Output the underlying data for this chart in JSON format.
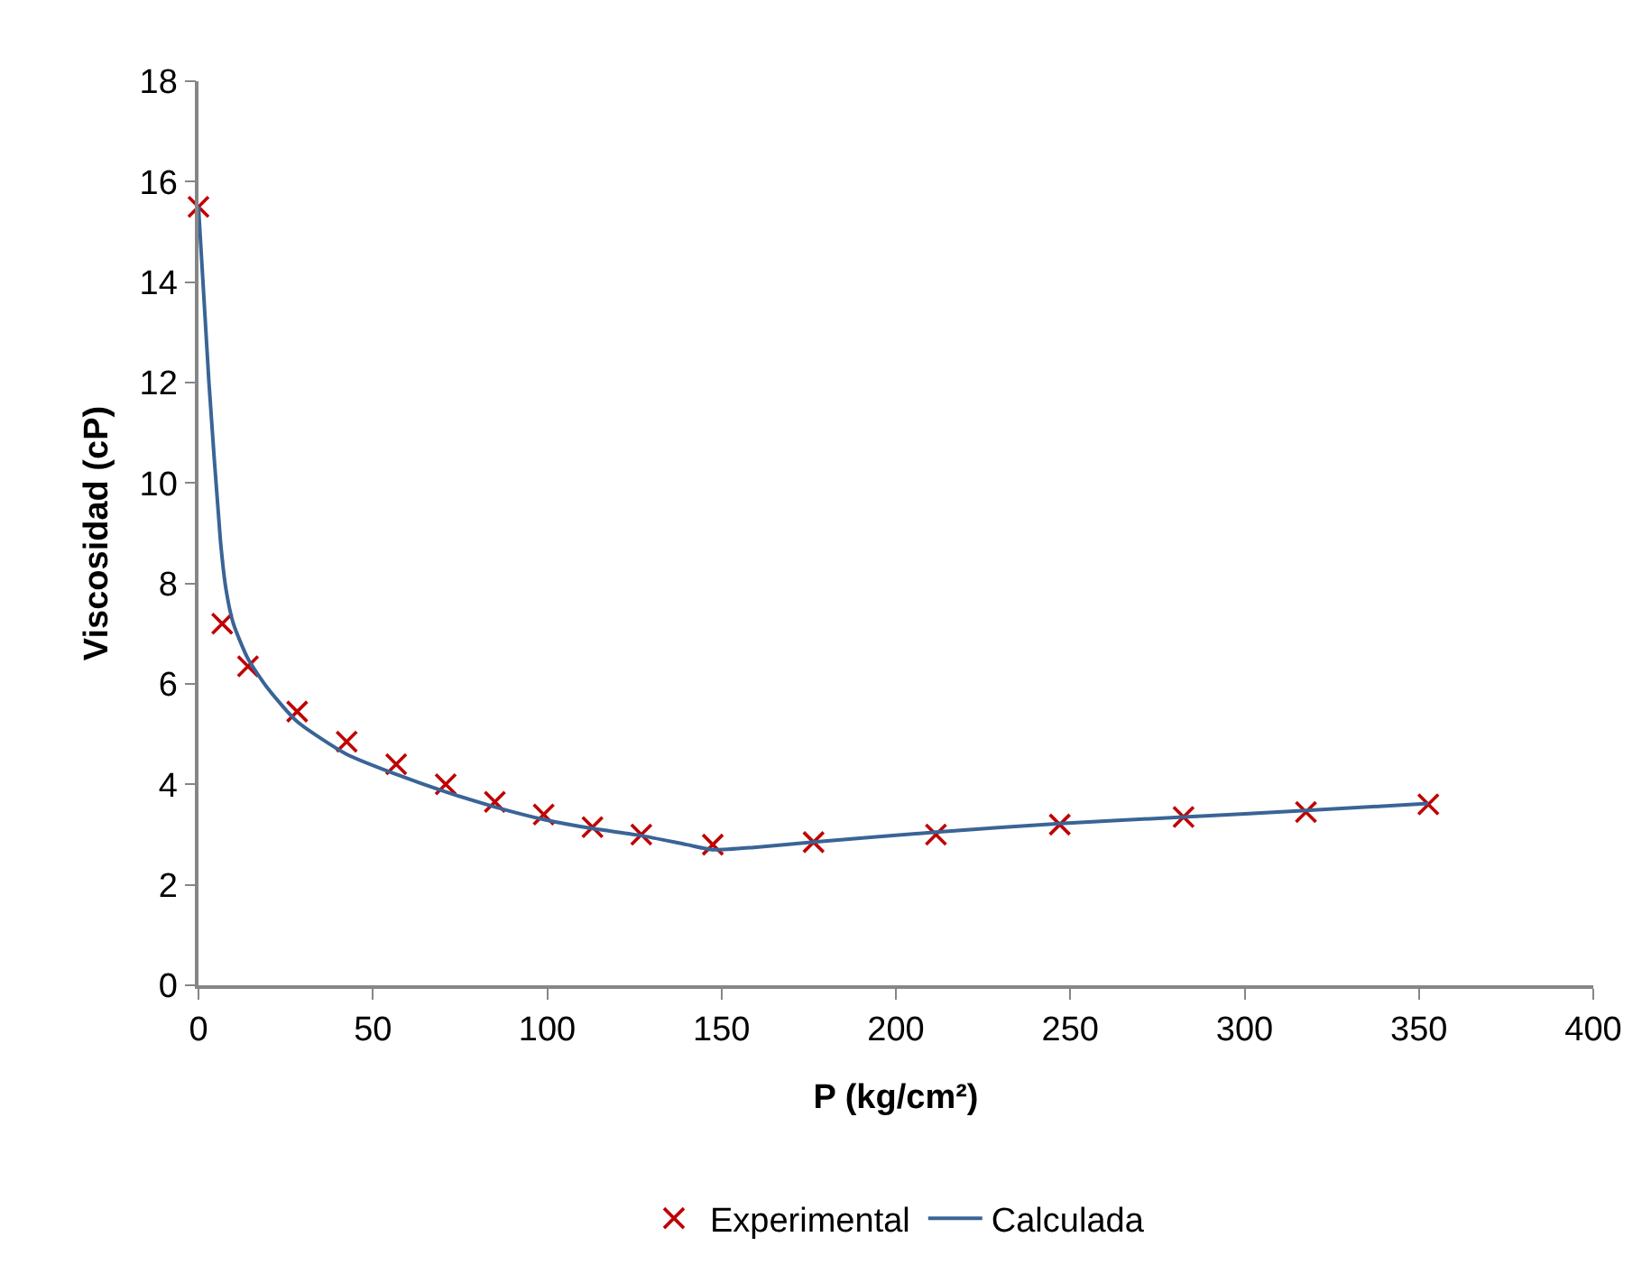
{
  "chart_data": {
    "type": "scatter",
    "xlabel": "P (kg/cm²)",
    "ylabel": "Viscosidad (cP)",
    "xlim": [
      0,
      400
    ],
    "xticks": [
      0,
      50,
      100,
      150,
      200,
      250,
      300,
      350,
      400
    ],
    "ylim": [
      0,
      18
    ],
    "yticks": [
      0,
      2,
      4,
      6,
      8,
      10,
      12,
      14,
      16,
      18
    ],
    "legend": "bottom",
    "line_style": "solid",
    "series": [
      {
        "name": "Experimental",
        "marker": "cross",
        "color": "#c00000",
        "x": [
          0,
          6.8,
          14.2,
          28.3,
          42.5,
          56.7,
          70.9,
          85,
          99,
          113,
          127,
          147.5,
          176.4,
          211.5,
          247,
          282.5,
          317.6,
          352.7
        ],
        "values": [
          15.5,
          7.2,
          6.35,
          5.45,
          4.85,
          4.4,
          4.0,
          3.65,
          3.4,
          3.15,
          3.0,
          2.8,
          2.85,
          3.0,
          3.2,
          3.35,
          3.45,
          3.6
        ]
      },
      {
        "name": "Calculada",
        "type": "line",
        "marker": "none",
        "color": "#3a6496",
        "x": [
          0,
          3,
          6.3,
          7.9,
          10,
          14.2,
          20,
          28.3,
          42.5,
          56.7,
          70.9,
          85,
          99,
          113,
          127,
          140,
          147.5,
          160,
          176.4,
          211.5,
          247,
          282.5,
          317.6,
          352.7
        ],
        "values": [
          15.5,
          12.0,
          8.85,
          7.88,
          7.2,
          6.5,
          5.9,
          5.25,
          4.6,
          4.2,
          3.85,
          3.55,
          3.3,
          3.12,
          2.98,
          2.8,
          2.7,
          2.75,
          2.85,
          3.05,
          3.22,
          3.35,
          3.48,
          3.62
        ]
      }
    ]
  }
}
